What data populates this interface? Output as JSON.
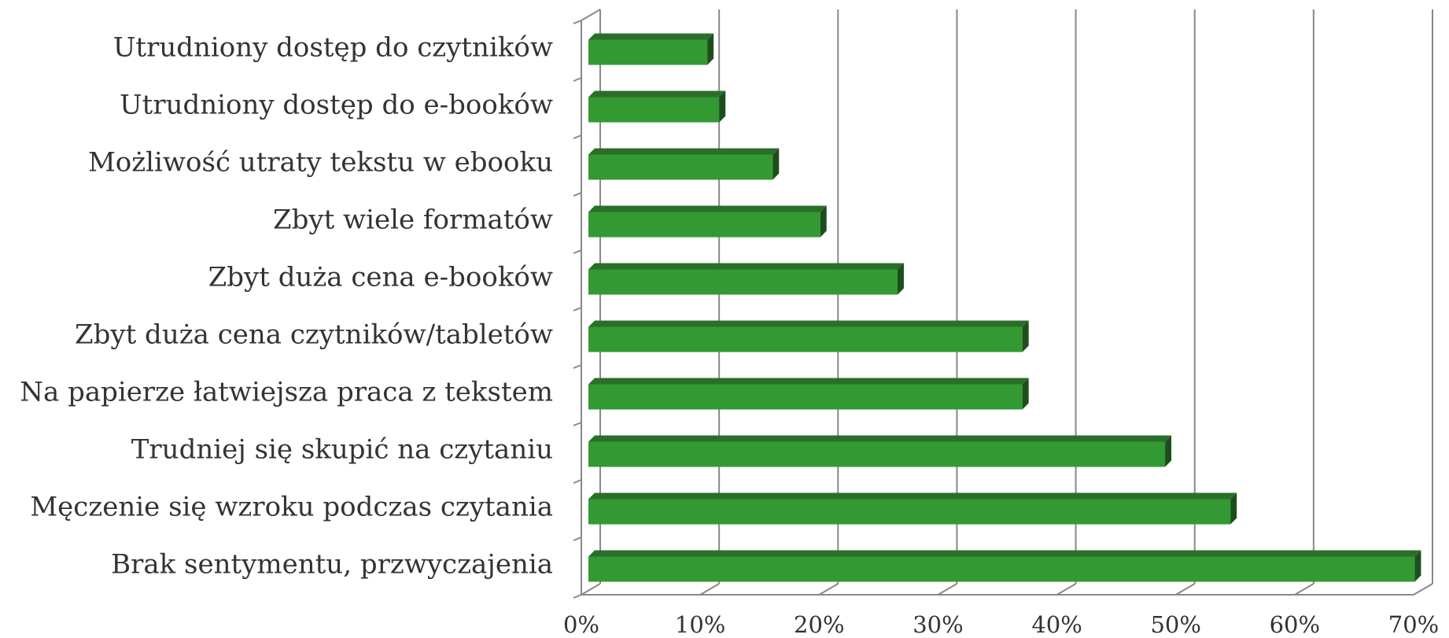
{
  "chart_data": {
    "type": "bar3d_horizontal",
    "categories": [
      "Utrudniony dostęp do czytników",
      "Utrudniony dostęp do e-booków",
      "Możliwość utraty tekstu w ebooku",
      "Zbyt wiele formatów",
      "Zbyt duża cena e-booków",
      "Zbyt duża cena czytników/tabletów",
      "Na papierze łatwiejsza praca z tekstem",
      "Trudniej się skupić na czytaniu",
      "Męczenie się wzroku podczas czytania",
      "Brak sentymentu, przwyczajenia"
    ],
    "values": [
      10,
      11,
      15.5,
      19.5,
      26,
      36.5,
      36.5,
      48.5,
      54,
      69.5
    ],
    "color": "#339933",
    "xlim": [
      0,
      70
    ],
    "xticks": [
      {
        "value": 0,
        "label": "0%"
      },
      {
        "value": 10,
        "label": "10%"
      },
      {
        "value": 20,
        "label": "20%"
      },
      {
        "value": 30,
        "label": "30%"
      },
      {
        "value": 40,
        "label": "40%"
      },
      {
        "value": 50,
        "label": "50%"
      },
      {
        "value": 60,
        "label": "60%"
      },
      {
        "value": 70,
        "label": "70%"
      }
    ],
    "grid": true
  }
}
